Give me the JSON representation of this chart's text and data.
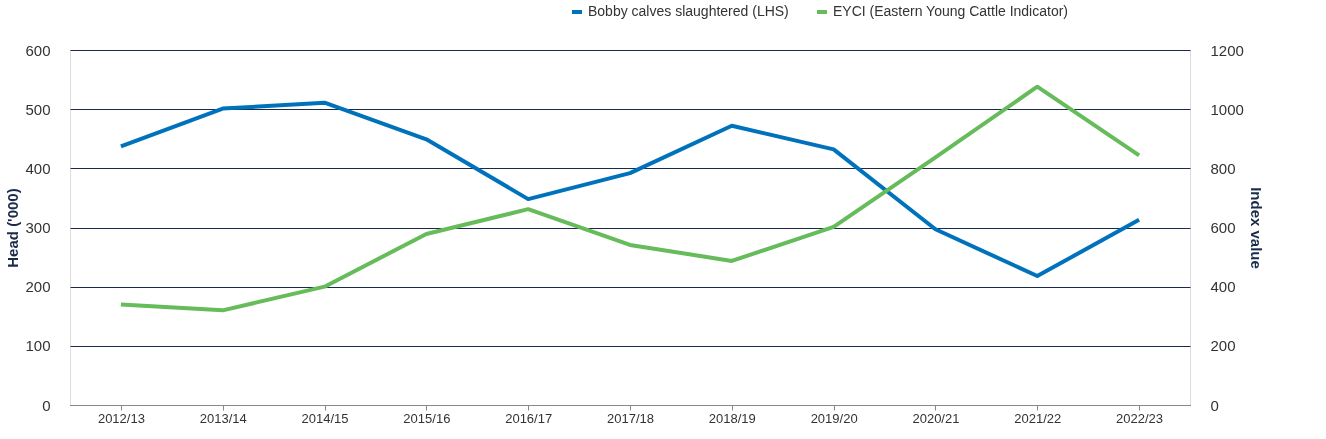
{
  "chart_data": {
    "type": "line",
    "xlabel": null,
    "ylabel": "Head ('000)",
    "y2label": "Index value",
    "categories": [
      "2012/13",
      "2013/14",
      "2014/15",
      "2015/16",
      "2016/17",
      "2017/18",
      "2018/19",
      "2019/20",
      "2020/21",
      "2021/22",
      "2022/23"
    ],
    "series": [
      {
        "name": "Bobby calves slaughtered (LHS)",
        "color": "#0072bc",
        "values": [
          437,
          501,
          511,
          449,
          348,
          392,
          472,
          432,
          297,
          218,
          313
        ]
      },
      {
        "name": "EYCI (Eastern Young Cattle Indicator)",
        "color": "#66bb5a",
        "axis": "y2",
        "values": [
          340,
          320,
          400,
          578,
          662,
          541,
          487,
          602,
          837,
          1076,
          844
        ]
      }
    ],
    "ylim": [
      0,
      600
    ],
    "yticks": [
      0,
      100,
      200,
      300,
      400,
      500,
      600
    ],
    "y2lim": [
      0,
      1200
    ],
    "y2ticks": [
      0,
      200,
      400,
      600,
      800,
      1000,
      1200
    ],
    "grid": "y",
    "legend": "top right",
    "marker": "none",
    "line_style": "solid"
  }
}
